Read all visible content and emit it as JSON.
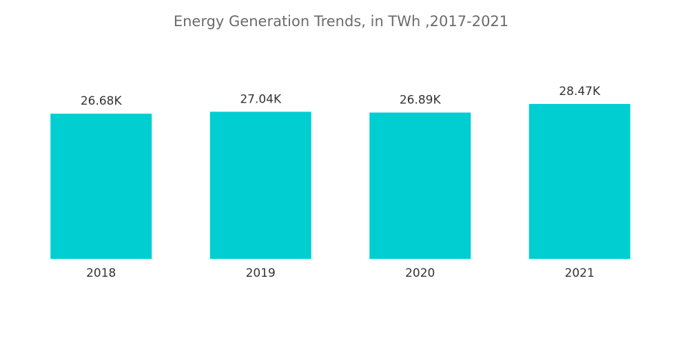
{
  "chart_data": {
    "type": "bar",
    "title": "Energy Generation Trends, in TWh ,2017-2021",
    "categories": [
      "2018",
      "2019",
      "2020",
      "2021"
    ],
    "values": [
      26680,
      27040,
      26890,
      28470
    ],
    "value_labels": [
      "26.68K",
      "27.04K",
      "26.89K",
      "28.47K"
    ],
    "color": "#00ced1"
  }
}
